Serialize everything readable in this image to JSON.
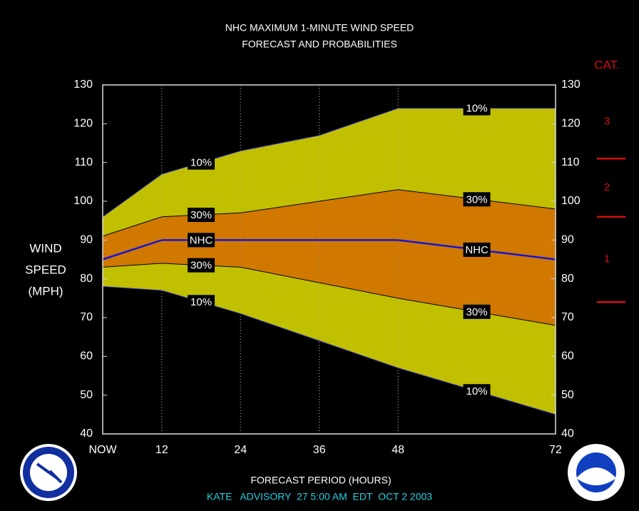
{
  "chart_data": {
    "type": "band",
    "title": [
      "NHC MAXIMUM 1-MINUTE WIND SPEED",
      "FORECAST AND PROBABILITIES"
    ],
    "y_label": [
      "WIND",
      "SPEED",
      "(MPH)"
    ],
    "x_label": "FORECAST PERIOD (HOURS)",
    "footer": "KATE   ADVISORY  27 5:00 AM  EDT  OCT 2 2003",
    "x": [
      3,
      12,
      24,
      36,
      48,
      72
    ],
    "xlim": [
      3,
      72
    ],
    "xticks": [
      {
        "value": 3,
        "label": "NOW"
      },
      12,
      24,
      36,
      48,
      72
    ],
    "ylim": [
      40,
      130
    ],
    "yticks": [
      40,
      50,
      60,
      70,
      80,
      90,
      100,
      110,
      120,
      130
    ],
    "y2lim": [
      40,
      130
    ],
    "y2ticks": [
      40,
      50,
      60,
      70,
      80,
      90,
      100,
      110,
      120,
      130
    ],
    "bands": [
      {
        "name": "10%",
        "color": "#c0c000",
        "upper": [
          96,
          107,
          113,
          117,
          124,
          124
        ],
        "lower": [
          78,
          77,
          71,
          64,
          57,
          45
        ]
      },
      {
        "name": "30%",
        "color": "#d07800",
        "upper": [
          91,
          96,
          97,
          100,
          103,
          98
        ],
        "lower": [
          83,
          84,
          83,
          79,
          75,
          68
        ]
      }
    ],
    "series": [
      {
        "name": "NHC",
        "color": "#1414d8",
        "values": [
          85,
          90,
          90,
          90,
          90,
          85
        ]
      }
    ],
    "category_scale": {
      "title": "CAT.",
      "labels": [
        "3",
        "2",
        "1"
      ],
      "boundaries": [
        111,
        96,
        74
      ],
      "color": "#d01010"
    }
  }
}
